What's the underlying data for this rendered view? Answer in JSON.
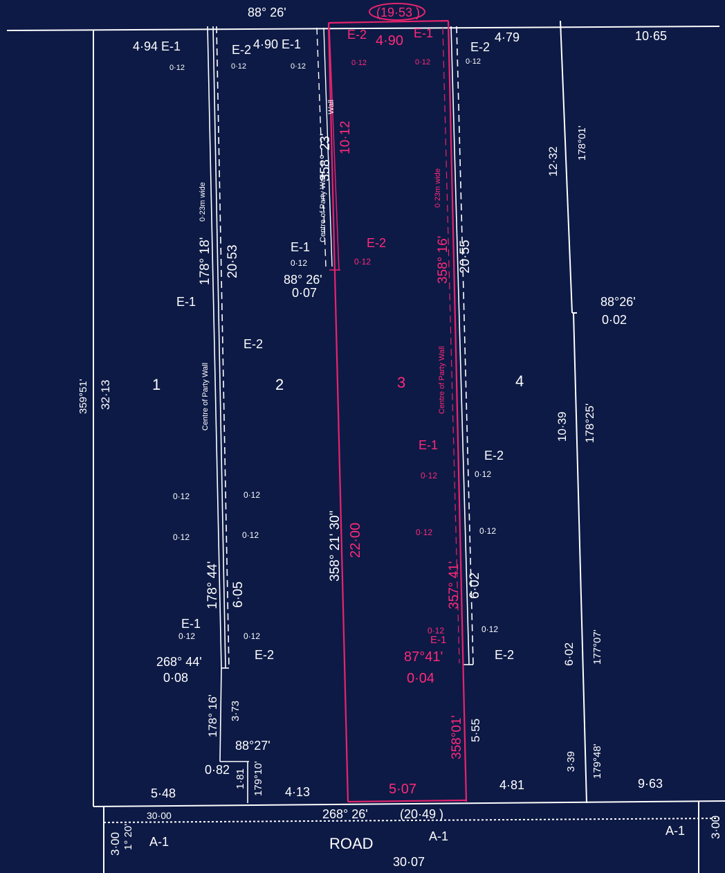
{
  "header": {
    "bearing_top": "88° 26'",
    "frontage_top": "(19·53 )",
    "dist_top_right": "10·65",
    "dist_top_4": "4·79"
  },
  "lots": [
    "1",
    "2",
    "3",
    "4"
  ],
  "boundary": {
    "left_bearing": "359°51'",
    "left_dist": "32·13",
    "right_dist_upper": "12·32",
    "right_bearing_upper": "178°01'",
    "jog_bearing": "88°26'",
    "jog_dist": "0·02",
    "right_dist_mid": "10·39",
    "right_bearing_mid": "178°25'",
    "right_dist_low": "6·02",
    "right_bearing_low": "177°07'",
    "right_dist_bottom": "3·39",
    "right_bearing_bottom": "179°48'"
  },
  "wall_1_2": {
    "top_e1": "4·94 E-1",
    "top_e2": "E-2",
    "top_offset_l": "0·12",
    "top_offset_r": "0·12",
    "width_note": "0·23m wide",
    "party_wall_note": "Centre of Party Wall",
    "bearing_upper": "178° 18'",
    "dist_upper": "20·53",
    "e1_mid": "E-1",
    "e2_mid": "E-2",
    "offsets": [
      "0·12",
      "0·12",
      "0·12",
      "0·12"
    ],
    "bearing_lower": "178° 44'",
    "dist_lower": "6·05",
    "e1_low": "E-1",
    "off_low_l": "0·12",
    "off_low_r": "0·12",
    "e2_low": "E-2",
    "end_bearing": "268° 44'",
    "end_dist": "0·08",
    "tail_bearing": "178° 16'",
    "tail_dist": "3·73",
    "notch_bearing": "88°27'",
    "notch_bearing2": "179°10'",
    "notch_dist_w": "0·82",
    "notch_dist_h": "1·81"
  },
  "wall_2_3": {
    "top_label": "4·90 E-1",
    "top_offset": "0·12",
    "party_wall_note": "Centre of Party Wall",
    "bearing": "358° 23'",
    "wall_suffix": "Wall",
    "e1_mid": "E-1",
    "off_mid": "0·12",
    "end_bearing": "88° 26'",
    "end_dist": "0·07",
    "long_bearing": "358° 21' 30\""
  },
  "lot3": {
    "top_e2": "E-2",
    "top_dist": "4·90",
    "top_e1": "E-1",
    "off_l": "0·12",
    "off_r": "0·12",
    "dist_upper": "10·12",
    "e2_mid": "E-2",
    "off_mid": "0·12",
    "dist_long": "22·00",
    "bearing_right": "358° 16'",
    "width_note": "0·23m wide",
    "party_wall_note": "Centre of Party Wall",
    "e1_low": "E-1",
    "off_low": "0·12",
    "off_low2": "0·12",
    "bearing_low": "357° 41'",
    "e1_end": "E-1",
    "off_end": "0·12",
    "end_bearing": "87°41'",
    "end_dist": "0·04",
    "bottom_bearing": "358°01'",
    "bottom_dist": "5·07"
  },
  "wall_3_4": {
    "top_e2": "E-2",
    "top_offset": "0·12",
    "dist_upper": "20·55",
    "e2_mid": "E-2",
    "off_mid": "0·12",
    "off_mid2": "0·12",
    "dist_lower": "6·02",
    "off_end": "0·12",
    "e2_end": "E-2",
    "tail_dist": "5·55"
  },
  "bottom": {
    "dist_lot1": "5·48",
    "dist_lot2": "4·13",
    "dist_lot4": "4·81",
    "dist_right": "9·63",
    "bearing": "268° 26'",
    "frontage": "(20·49 )"
  },
  "road": {
    "name": "ROAD",
    "dist_top": "30·00",
    "dist_bottom": "30·07",
    "left_width": "3·00",
    "left_bearing": "1° 20'",
    "easement_left": "A-1",
    "easement_mid": "A-1",
    "easement_right": "A-1",
    "right_width": "3·00"
  }
}
